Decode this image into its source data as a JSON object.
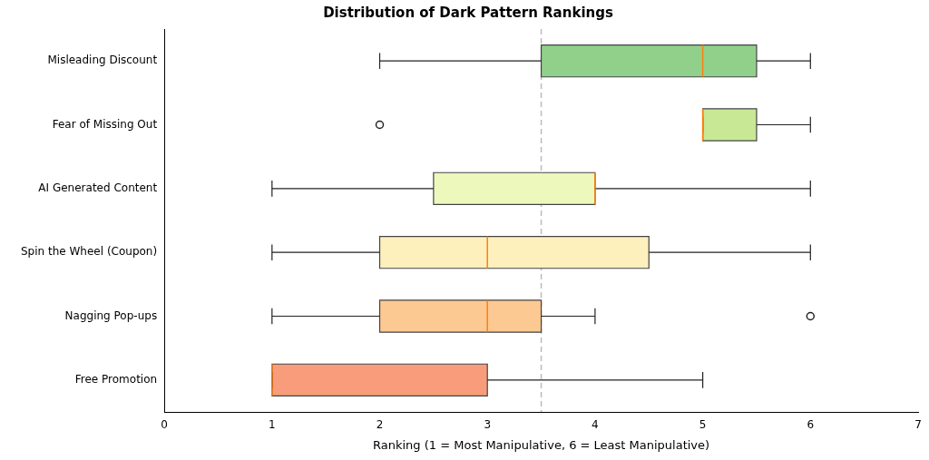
{
  "chart_data": {
    "type": "box",
    "orientation": "horizontal",
    "title": "Distribution of Dark Pattern Rankings",
    "xlabel": "Ranking (1 = Most Manipulative, 6 = Least Manipulative)",
    "categories": [
      "Misleading Discount",
      "Fear of Missing Out",
      "AI Generated Content",
      "Spin the Wheel (Coupon)",
      "Nagging Pop-ups",
      "Free Promotion"
    ],
    "boxes": [
      {
        "low": 2,
        "q1": 3.5,
        "median": 5,
        "q3": 5.5,
        "high": 6
      },
      {
        "low": 5,
        "q1": 5,
        "median": 5,
        "q3": 5.5,
        "high": 6,
        "outliers": [
          2
        ]
      },
      {
        "low": 1,
        "q1": 2.5,
        "median": 4,
        "q3": 4,
        "high": 6
      },
      {
        "low": 1,
        "q1": 2,
        "median": 3,
        "q3": 4.5,
        "high": 6
      },
      {
        "low": 1,
        "q1": 2,
        "median": 3,
        "q3": 3.5,
        "high": 4,
        "outliers": [
          6
        ]
      },
      {
        "low": 1,
        "q1": 1,
        "median": 1,
        "q3": 3,
        "high": 5
      }
    ],
    "colors": [
      "#91d08b",
      "#c8e896",
      "#edf8bd",
      "#fdf0bd",
      "#fdc992",
      "#f89c7c"
    ],
    "xlim": [
      0,
      7
    ],
    "xticks": [
      0,
      1,
      2,
      3,
      4,
      5,
      6,
      7
    ],
    "ref_lines": [
      {
        "axis": "x",
        "value": 3.5,
        "color": "#bbbbbb",
        "line_style": "dashed"
      }
    ]
  }
}
